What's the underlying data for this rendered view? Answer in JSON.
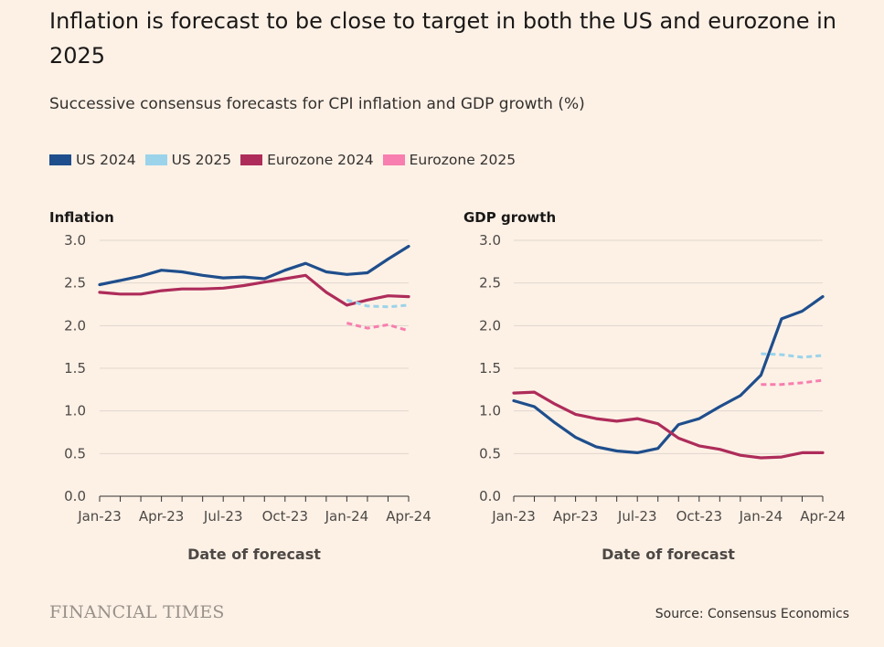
{
  "title": "Inflation is forecast to be close to target in both the US and eurozone in 2025",
  "subtitle": "Successive consensus forecasts for CPI inflation and GDP growth (%)",
  "legend": [
    {
      "label": "US 2024",
      "color": "#1f4e8c"
    },
    {
      "label": "US 2025",
      "color": "#9bd3ea"
    },
    {
      "label": "Eurozone 2024",
      "color": "#ae2c5a"
    },
    {
      "label": "Eurozone 2025",
      "color": "#f77eae"
    }
  ],
  "footer": {
    "logo": "FINANCIAL TIMES",
    "source": "Source: Consensus Economics"
  },
  "chart_data": [
    {
      "type": "line",
      "title": "Inflation",
      "xlabel": "Date of forecast",
      "ylabel": "",
      "ylim": [
        0,
        3.0
      ],
      "yticks": [
        "0.0",
        "0.5",
        "1.0",
        "1.5",
        "2.0",
        "2.5",
        "3.0"
      ],
      "xtick_labels": [
        "Jan-23",
        "Apr-23",
        "Jul-23",
        "Oct-23",
        "Jan-24",
        "Apr-24"
      ],
      "x": [
        "Jan-23",
        "Feb-23",
        "Mar-23",
        "Apr-23",
        "May-23",
        "Jun-23",
        "Jul-23",
        "Aug-23",
        "Sep-23",
        "Oct-23",
        "Nov-23",
        "Dec-23",
        "Jan-24",
        "Feb-24",
        "Mar-24",
        "Apr-24"
      ],
      "grid": true,
      "series": [
        {
          "name": "US 2024",
          "style": "solid",
          "color": "#1f4e8c",
          "values": [
            2.48,
            2.53,
            2.58,
            2.65,
            2.63,
            2.59,
            2.56,
            2.57,
            2.55,
            2.65,
            2.73,
            2.63,
            2.6,
            2.62,
            2.78,
            2.93
          ]
        },
        {
          "name": "Eurozone 2024",
          "style": "solid",
          "color": "#ae2c5a",
          "values": [
            2.39,
            2.37,
            2.37,
            2.41,
            2.43,
            2.43,
            2.44,
            2.47,
            2.51,
            2.55,
            2.59,
            2.39,
            2.24,
            2.3,
            2.35,
            2.34
          ]
        },
        {
          "name": "US 2025",
          "style": "dashed",
          "color": "#9bd3ea",
          "values": [
            null,
            null,
            null,
            null,
            null,
            null,
            null,
            null,
            null,
            null,
            null,
            null,
            2.3,
            2.23,
            2.22,
            2.24
          ]
        },
        {
          "name": "Eurozone 2025",
          "style": "dashed",
          "color": "#f77eae",
          "values": [
            null,
            null,
            null,
            null,
            null,
            null,
            null,
            null,
            null,
            null,
            null,
            null,
            2.03,
            1.97,
            2.01,
            1.94
          ]
        }
      ]
    },
    {
      "type": "line",
      "title": "GDP growth",
      "xlabel": "Date of forecast",
      "ylabel": "",
      "ylim": [
        0,
        3.0
      ],
      "yticks": [
        "0.0",
        "0.5",
        "1.0",
        "1.5",
        "2.0",
        "2.5",
        "3.0"
      ],
      "xtick_labels": [
        "Jan-23",
        "Apr-23",
        "Jul-23",
        "Oct-23",
        "Jan-24",
        "Apr-24"
      ],
      "x": [
        "Jan-23",
        "Feb-23",
        "Mar-23",
        "Apr-23",
        "May-23",
        "Jun-23",
        "Jul-23",
        "Aug-23",
        "Sep-23",
        "Oct-23",
        "Nov-23",
        "Dec-23",
        "Jan-24",
        "Feb-24",
        "Mar-24",
        "Apr-24"
      ],
      "grid": true,
      "series": [
        {
          "name": "US 2024",
          "style": "solid",
          "color": "#1f4e8c",
          "values": [
            1.12,
            1.05,
            0.86,
            0.69,
            0.58,
            0.53,
            0.51,
            0.56,
            0.84,
            0.91,
            1.05,
            1.18,
            1.42,
            2.08,
            2.17,
            2.34
          ]
        },
        {
          "name": "Eurozone 2024",
          "style": "solid",
          "color": "#ae2c5a",
          "values": [
            1.21,
            1.22,
            1.08,
            0.96,
            0.91,
            0.88,
            0.91,
            0.85,
            0.68,
            0.59,
            0.55,
            0.48,
            0.45,
            0.46,
            0.51,
            0.51
          ]
        },
        {
          "name": "US 2025",
          "style": "dashed",
          "color": "#9bd3ea",
          "values": [
            null,
            null,
            null,
            null,
            null,
            null,
            null,
            null,
            null,
            null,
            null,
            null,
            1.67,
            1.66,
            1.63,
            1.65
          ]
        },
        {
          "name": "Eurozone 2025",
          "style": "dashed",
          "color": "#f77eae",
          "values": [
            null,
            null,
            null,
            null,
            null,
            null,
            null,
            null,
            null,
            null,
            null,
            null,
            1.31,
            1.31,
            1.33,
            1.36
          ]
        }
      ]
    }
  ]
}
